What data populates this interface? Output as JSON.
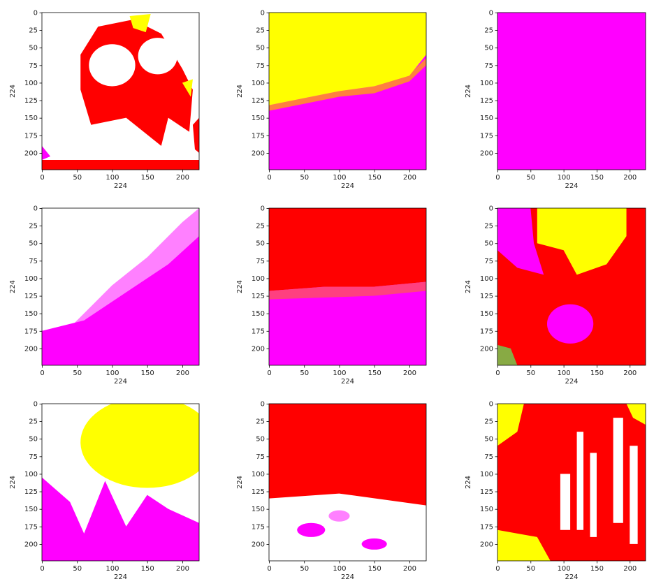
{
  "chart_data": [
    {
      "type": "image",
      "xlabel": "224",
      "ylabel": "224",
      "xlim": [
        -0.5,
        223.5
      ],
      "ylim": [
        223.5,
        -0.5
      ],
      "xticks": [
        0,
        50,
        100,
        150,
        200
      ],
      "yticks": [
        0,
        25,
        50,
        75,
        100,
        125,
        150,
        175,
        200
      ]
    },
    {
      "type": "image",
      "xlabel": "224",
      "ylabel": "224",
      "xlim": [
        -0.5,
        223.5
      ],
      "ylim": [
        223.5,
        -0.5
      ],
      "xticks": [
        0,
        50,
        100,
        150,
        200
      ],
      "yticks": [
        0,
        25,
        50,
        75,
        100,
        125,
        150,
        175,
        200
      ]
    },
    {
      "type": "image",
      "xlabel": "224",
      "ylabel": "224",
      "xlim": [
        -0.5,
        223.5
      ],
      "ylim": [
        223.5,
        -0.5
      ],
      "xticks": [
        0,
        50,
        100,
        150,
        200
      ],
      "yticks": [
        0,
        25,
        50,
        75,
        100,
        125,
        150,
        175,
        200
      ]
    },
    {
      "type": "image",
      "xlabel": "224",
      "ylabel": "224",
      "xlim": [
        -0.5,
        223.5
      ],
      "ylim": [
        223.5,
        -0.5
      ],
      "xticks": [
        0,
        50,
        100,
        150,
        200
      ],
      "yticks": [
        0,
        25,
        50,
        75,
        100,
        125,
        150,
        175,
        200
      ]
    },
    {
      "type": "image",
      "xlabel": "224",
      "ylabel": "224",
      "xlim": [
        -0.5,
        223.5
      ],
      "ylim": [
        223.5,
        -0.5
      ],
      "xticks": [
        0,
        50,
        100,
        150,
        200
      ],
      "yticks": [
        0,
        25,
        50,
        75,
        100,
        125,
        150,
        175,
        200
      ]
    },
    {
      "type": "image",
      "xlabel": "224",
      "ylabel": "224",
      "xlim": [
        -0.5,
        223.5
      ],
      "ylim": [
        223.5,
        -0.5
      ],
      "xticks": [
        0,
        50,
        100,
        150,
        200
      ],
      "yticks": [
        0,
        25,
        50,
        75,
        100,
        125,
        150,
        175,
        200
      ]
    },
    {
      "type": "image",
      "xlabel": "224",
      "ylabel": "224",
      "xlim": [
        -0.5,
        223.5
      ],
      "ylim": [
        223.5,
        -0.5
      ],
      "xticks": [
        0,
        50,
        100,
        150,
        200
      ],
      "yticks": [
        0,
        25,
        50,
        75,
        100,
        125,
        150,
        175,
        200
      ]
    },
    {
      "type": "image",
      "xlabel": "224",
      "ylabel": "224",
      "xlim": [
        -0.5,
        223.5
      ],
      "ylim": [
        223.5,
        -0.5
      ],
      "xticks": [
        0,
        50,
        100,
        150,
        200
      ],
      "yticks": [
        0,
        25,
        50,
        75,
        100,
        125,
        150,
        175,
        200
      ]
    },
    {
      "type": "image",
      "xlabel": "224",
      "ylabel": "224",
      "xlim": [
        -0.5,
        223.5
      ],
      "ylim": [
        223.5,
        -0.5
      ],
      "xticks": [
        0,
        50,
        100,
        150,
        200
      ],
      "yticks": [
        0,
        25,
        50,
        75,
        100,
        125,
        150,
        175,
        200
      ]
    }
  ]
}
